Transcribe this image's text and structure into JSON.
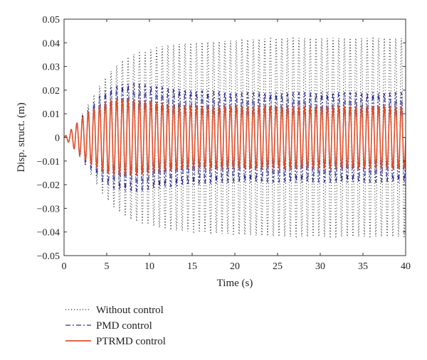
{
  "chart_data": {
    "type": "line",
    "title": "",
    "xlabel": "Time (s)",
    "ylabel": "Disp. struct. (m)",
    "xlim": [
      0,
      40
    ],
    "ylim": [
      -0.05,
      0.05
    ],
    "x_ticks": [
      0,
      5,
      10,
      15,
      20,
      25,
      30,
      35,
      40
    ],
    "x_tick_labels": [
      "0",
      "5",
      "10",
      "15",
      "20",
      "25",
      "30",
      "35",
      "40"
    ],
    "y_ticks": [
      -0.05,
      -0.04,
      -0.03,
      -0.02,
      -0.01,
      0,
      0.01,
      0.02,
      0.03,
      0.04,
      0.05
    ],
    "y_tick_labels": [
      "−0.05",
      "−0.04",
      "−0.03",
      "−0.02",
      "−0.01",
      "0",
      "0.01",
      "0.02",
      "0.03",
      "0.04",
      "0.05"
    ],
    "grid": false,
    "legend_placement": "bottom-left, below plot",
    "oscillation_frequency_hz": 1.5,
    "series": [
      {
        "name": "Without control",
        "color": "#222222",
        "style": "dotted",
        "x": [
          0,
          1,
          2,
          3,
          4,
          5,
          6,
          7,
          8,
          10,
          12,
          15,
          20,
          25,
          30,
          35,
          40
        ],
        "amplitude": [
          0.0,
          0.004,
          0.009,
          0.015,
          0.021,
          0.026,
          0.03,
          0.033,
          0.035,
          0.037,
          0.039,
          0.04,
          0.041,
          0.042,
          0.042,
          0.042,
          0.042
        ]
      },
      {
        "name": "PMD control",
        "color": "#2f2f9a",
        "style": "dashdot",
        "x": [
          0,
          1,
          2,
          3,
          4,
          5,
          6,
          8,
          10,
          12,
          15,
          20,
          25,
          30,
          35,
          40
        ],
        "amplitude": [
          0.0,
          0.004,
          0.009,
          0.013,
          0.017,
          0.02,
          0.022,
          0.023,
          0.022,
          0.021,
          0.02,
          0.019,
          0.019,
          0.019,
          0.019,
          0.019
        ]
      },
      {
        "name": "PTRMD control",
        "color": "#e0502a",
        "style": "solid",
        "x": [
          0,
          1,
          2,
          3,
          4,
          5,
          6,
          8,
          10,
          12,
          15,
          20,
          25,
          30,
          35,
          40
        ],
        "amplitude": [
          0.0,
          0.004,
          0.008,
          0.011,
          0.013,
          0.015,
          0.016,
          0.016,
          0.015,
          0.014,
          0.013,
          0.013,
          0.013,
          0.013,
          0.013,
          0.013
        ]
      }
    ]
  }
}
